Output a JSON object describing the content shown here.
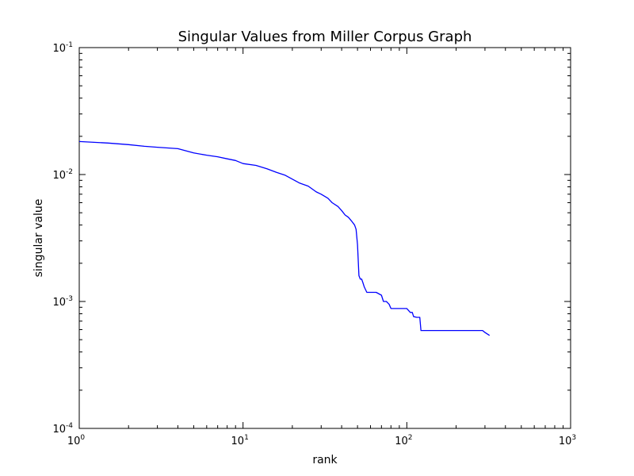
{
  "chart_data": {
    "type": "line",
    "title": "Singular Values from Miller Corpus Graph",
    "xlabel": "rank",
    "ylabel": "singular value",
    "xscale": "log",
    "yscale": "log",
    "xlim": [
      1,
      1000
    ],
    "ylim": [
      0.0001,
      0.1
    ],
    "grid": false,
    "legend": "none",
    "line_color": "#0000ff",
    "x_ticks": [
      {
        "base": "10",
        "exp": "0",
        "value": 1
      },
      {
        "base": "10",
        "exp": "1",
        "value": 10
      },
      {
        "base": "10",
        "exp": "2",
        "value": 100
      },
      {
        "base": "10",
        "exp": "3",
        "value": 1000
      }
    ],
    "y_ticks": [
      {
        "base": "10",
        "exp": "-4",
        "value": 0.0001
      },
      {
        "base": "10",
        "exp": "-3",
        "value": 0.001
      },
      {
        "base": "10",
        "exp": "-2",
        "value": 0.01
      },
      {
        "base": "10",
        "exp": "-1",
        "value": 0.1
      }
    ],
    "series": [
      {
        "x": [
          1,
          1.5,
          2,
          2.5,
          3,
          4,
          5,
          6,
          7,
          8,
          9,
          10,
          12,
          14,
          16,
          18,
          20,
          22,
          25,
          28,
          30,
          33,
          35,
          38,
          40,
          42,
          44,
          46,
          48,
          49,
          50,
          51,
          52,
          53,
          54,
          55,
          57,
          60,
          65,
          70,
          72,
          75,
          78,
          80,
          82,
          85,
          90,
          100,
          105,
          108,
          110,
          115,
          120,
          122,
          125,
          150,
          200,
          250,
          290,
          300,
          320
        ],
        "y": [
          0.0182,
          0.0177,
          0.0172,
          0.0167,
          0.0164,
          0.016,
          0.0148,
          0.0142,
          0.0138,
          0.0133,
          0.0129,
          0.0122,
          0.0118,
          0.0111,
          0.0104,
          0.0099,
          0.0092,
          0.0086,
          0.0081,
          0.0073,
          0.007,
          0.0065,
          0.006,
          0.0056,
          0.0052,
          0.0048,
          0.0046,
          0.0043,
          0.004,
          0.0037,
          0.0028,
          0.0016,
          0.0015,
          0.0015,
          0.0014,
          0.0013,
          0.00118,
          0.00118,
          0.00118,
          0.00112,
          0.001,
          0.001,
          0.00095,
          0.00088,
          0.00088,
          0.00088,
          0.00088,
          0.00088,
          0.00082,
          0.00082,
          0.00076,
          0.00075,
          0.00075,
          0.00059,
          0.00059,
          0.00059,
          0.00059,
          0.00059,
          0.00059,
          0.00057,
          0.00054
        ]
      }
    ]
  }
}
